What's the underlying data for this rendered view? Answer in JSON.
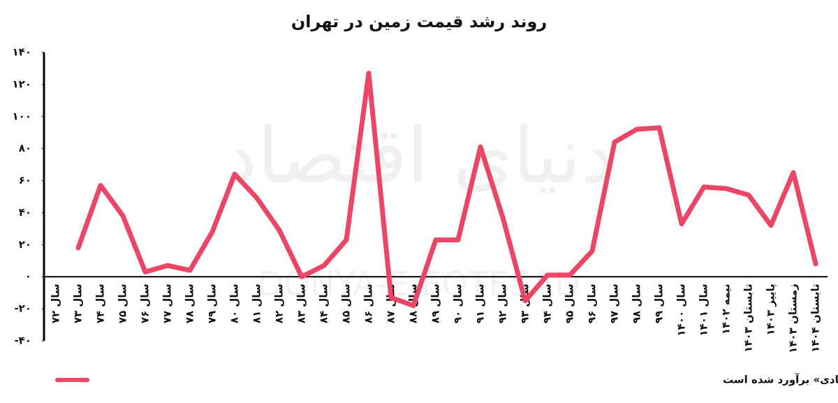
{
  "chart_data": {
    "type": "line",
    "title": "روند رشد قیمت زمین در تهران",
    "watermark": "دنیای اقتصاد",
    "watermark_latin": "DONYA-E-EQTESAD",
    "categories": [
      "سال ۷۲",
      "سال ۷۳",
      "سال ۷۴",
      "سال ۷۵",
      "سال ۷۶",
      "سال ۷۷",
      "سال ۷۸",
      "سال ۷۹",
      "سال ۸۰",
      "سال ۸۱",
      "سال ۸۲",
      "سال ۸۳",
      "سال ۸۴",
      "سال ۸۵",
      "سال ۸۶",
      "سال ۸۷",
      "سال ۸۸",
      "سال ۸۹",
      "سال ۹۰",
      "سال ۹۱",
      "سال ۹۲",
      "سال ۹۳",
      "سال ۹۴",
      "سال ۹۵",
      "سال ۹۶",
      "سال ۹۷",
      "سال ۹۸",
      "سال ۹۹",
      "سال ۱۴۰۰",
      "سال ۱۴۰۱",
      "نیمه ۱۴۰۲",
      "تابستان ۱۴۰۳",
      "پاییز ۱۴۰۳",
      "زمستان ۱۴۰۳",
      "تابستان ۱۴۰۴"
    ],
    "series": [
      {
        "name": "تورم نقطه به نقطه زمین مسکونی (کلنگی) در تهران- رشد ۳ سال اخیر براساس «قیمت‌های پیشنهادی» برآورد شده است",
        "color": "#ec4667",
        "values": [
          null,
          18,
          57,
          38,
          3,
          7,
          4,
          28,
          64,
          49,
          29,
          0,
          7,
          23,
          127,
          -13,
          -18,
          23,
          23,
          81,
          37,
          -15,
          1,
          1,
          16,
          84,
          92,
          93,
          33,
          56,
          55,
          51,
          32,
          65,
          8
        ]
      }
    ],
    "ylim": [
      -40,
      140
    ],
    "yticks": [
      {
        "value": -40,
        "label": "-۴۰"
      },
      {
        "value": -20,
        "label": "-۲۰"
      },
      {
        "value": 0,
        "label": "۰"
      },
      {
        "value": 20,
        "label": "۲۰"
      },
      {
        "value": 40,
        "label": "۴۰"
      },
      {
        "value": 60,
        "label": "۶۰"
      },
      {
        "value": 80,
        "label": "۸۰"
      },
      {
        "value": 100,
        "label": "۱۰۰"
      },
      {
        "value": 120,
        "label": "۱۲۰"
      },
      {
        "value": 140,
        "label": "۱۴۰"
      }
    ],
    "grid": false
  }
}
